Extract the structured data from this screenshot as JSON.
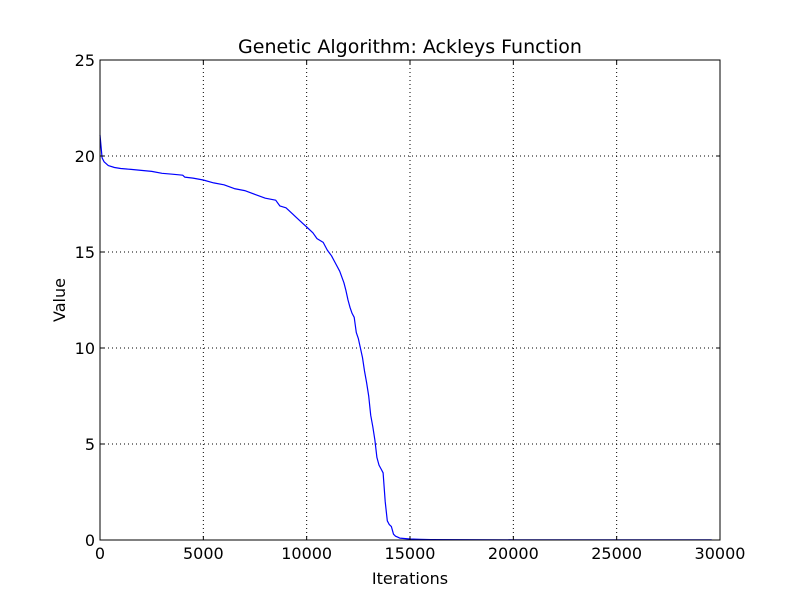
{
  "chart_data": {
    "type": "line",
    "title": "Genetic Algorithm: Ackleys Function",
    "xlabel": "Iterations",
    "ylabel": "Value",
    "xlim": [
      0,
      30000
    ],
    "ylim": [
      0,
      25
    ],
    "xticks": [
      0,
      5000,
      10000,
      15000,
      20000,
      25000,
      30000
    ],
    "yticks": [
      0,
      5,
      10,
      15,
      20,
      25
    ],
    "xtick_labels": [
      "0",
      "5000",
      "10000",
      "15000",
      "20000",
      "25000",
      "30000"
    ],
    "ytick_labels": [
      "0",
      "5",
      "10",
      "15",
      "20",
      "25"
    ],
    "grid": true,
    "line_color": "#0000ff",
    "series": [
      {
        "x": [
          0,
          100,
          200,
          400,
          700,
          1000,
          1500,
          2000,
          2500,
          3000,
          3500,
          4000,
          4100,
          4500,
          5000,
          5500,
          6000,
          6500,
          7000,
          7500,
          8000,
          8500,
          8700,
          9000,
          9300,
          9500,
          9800,
          10000,
          10300,
          10500,
          10800,
          11000,
          11200,
          11400,
          11600,
          11800,
          11900,
          12000,
          12100,
          12200,
          12300,
          12400,
          12500,
          12600,
          12700,
          12800,
          12900,
          13000,
          13100,
          13200,
          13300,
          13400,
          13500,
          13600,
          13700,
          13800,
          13900,
          14000,
          14100,
          14200,
          14300,
          14400,
          14500,
          15000,
          15500,
          16000,
          20000,
          25000,
          29600
        ],
        "y": [
          21.1,
          19.9,
          19.7,
          19.5,
          19.4,
          19.35,
          19.3,
          19.25,
          19.2,
          19.1,
          19.05,
          19.0,
          18.9,
          18.85,
          18.75,
          18.6,
          18.5,
          18.3,
          18.2,
          18.0,
          17.8,
          17.7,
          17.4,
          17.3,
          17.0,
          16.8,
          16.5,
          16.3,
          16.0,
          15.7,
          15.5,
          15.1,
          14.8,
          14.4,
          14.0,
          13.4,
          13.0,
          12.5,
          12.1,
          11.8,
          11.6,
          10.8,
          10.5,
          10.0,
          9.5,
          8.8,
          8.2,
          7.5,
          6.5,
          5.9,
          5.2,
          4.3,
          3.9,
          3.7,
          3.5,
          2.0,
          1.0,
          0.8,
          0.7,
          0.3,
          0.2,
          0.15,
          0.1,
          0.05,
          0.03,
          0.02,
          0.01,
          0.01,
          0.01
        ]
      }
    ]
  }
}
